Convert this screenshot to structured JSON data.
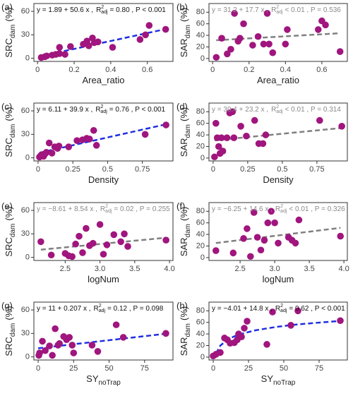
{
  "chart_data": [
    {
      "type": "scatter",
      "label": "(a)",
      "xlabel": [
        "Area_ratio"
      ],
      "ylabel": [
        "SRC",
        "dam",
        "(%)"
      ],
      "annotation": [
        "y = 1.89 + 50.6 x ,",
        "R",
        "2",
        "adj",
        "= 0.80 , P < 0.001"
      ],
      "annotation_color": "#111111",
      "x": [
        0.02,
        0.04,
        0.05,
        0.08,
        0.1,
        0.12,
        0.12,
        0.15,
        0.18,
        0.25,
        0.27,
        0.28,
        0.3,
        0.31,
        0.33,
        0.41,
        0.56,
        0.59,
        0.61,
        0.7
      ],
      "y": [
        1,
        2,
        3,
        4,
        5,
        6,
        14,
        5,
        15,
        18,
        22,
        16,
        26,
        20,
        21,
        14,
        24,
        30,
        42,
        37
      ],
      "color": "#a0157e",
      "fit": {
        "x": [
          0.02,
          0.7
        ],
        "y": [
          2.9,
          37.3
        ],
        "color": "#1f2fe0"
      },
      "xlim": [
        -0.02,
        0.74
      ],
      "ylim": [
        -4,
        70
      ],
      "xticks": [
        0,
        0.2,
        0.4,
        0.6
      ],
      "yticks": [
        0,
        30,
        60
      ]
    },
    {
      "type": "scatter",
      "label": "(b)",
      "xlabel": [
        "Area_ratio"
      ],
      "ylabel": [
        "SAR",
        "dam",
        "(%)"
      ],
      "annotation": [
        "y = 31.2 + 17.7 x ,",
        "R",
        "2",
        "adj",
        "< 0.01 , P = 0.536"
      ],
      "annotation_color": "#8a8a8a",
      "x": [
        0.02,
        0.05,
        0.08,
        0.1,
        0.12,
        0.14,
        0.15,
        0.17,
        0.22,
        0.25,
        0.28,
        0.3,
        0.31,
        0.33,
        0.4,
        0.41,
        0.58,
        0.6,
        0.62,
        0.7
      ],
      "y": [
        2,
        35,
        8,
        16,
        78,
        30,
        35,
        60,
        23,
        38,
        25,
        78,
        25,
        10,
        25,
        50,
        50,
        65,
        58,
        12
      ],
      "color": "#a0157e",
      "fit": {
        "x": [
          0.02,
          0.7
        ],
        "y": [
          31.6,
          43.6
        ],
        "color": "#808080"
      },
      "xlim": [
        -0.02,
        0.74
      ],
      "ylim": [
        -5,
        95
      ],
      "xticks": [
        0,
        0.2,
        0.4,
        0.6
      ],
      "yticks": [
        0,
        20,
        40,
        60,
        80
      ]
    },
    {
      "type": "scatter",
      "label": "(c)",
      "xlabel": [
        "Density"
      ],
      "ylabel": [
        "SRC",
        "dam",
        "(%)"
      ],
      "annotation": [
        "y = 6.11 + 39.9 x ,",
        "R",
        "2",
        "adj",
        "= 0.76 , P < 0.001"
      ],
      "annotation_color": "#111111",
      "x": [
        0.01,
        0.02,
        0.03,
        0.04,
        0.05,
        0.06,
        0.08,
        0.1,
        0.12,
        0.14,
        0.15,
        0.22,
        0.28,
        0.32,
        0.35,
        0.37,
        0.4,
        0.42,
        0.77,
        0.92
      ],
      "y": [
        1,
        3,
        4,
        2,
        5,
        7,
        19,
        6,
        14,
        12,
        15,
        14,
        22,
        23,
        25,
        24,
        35,
        16,
        30,
        42
      ],
      "color": "#a0157e",
      "fit": {
        "x": [
          0.01,
          0.92
        ],
        "y": [
          6.5,
          42.8
        ],
        "color": "#1f2fe0"
      },
      "xlim": [
        -0.03,
        0.97
      ],
      "ylim": [
        -4,
        70
      ],
      "xticks": [
        0,
        0.25,
        0.5,
        0.75
      ],
      "yticks": [
        0,
        30,
        60
      ]
    },
    {
      "type": "scatter",
      "label": "(d)",
      "xlabel": [
        "Density"
      ],
      "ylabel": [
        "SAR",
        "dam",
        "(%)"
      ],
      "annotation": [
        "y = 30.4 + 23.2 x ,",
        "R",
        "2",
        "adj",
        "< 0.01 , P = 0.314"
      ],
      "annotation_color": "#8a8a8a",
      "x": [
        0.01,
        0.02,
        0.03,
        0.04,
        0.05,
        0.06,
        0.07,
        0.1,
        0.12,
        0.14,
        0.15,
        0.2,
        0.24,
        0.3,
        0.33,
        0.36,
        0.38,
        0.77,
        0.93
      ],
      "y": [
        2,
        60,
        35,
        20,
        8,
        35,
        12,
        35,
        78,
        80,
        35,
        55,
        38,
        65,
        25,
        25,
        40,
        65,
        55
      ],
      "color": "#a0157e",
      "fit": {
        "x": [
          0.01,
          0.93
        ],
        "y": [
          30.6,
          52.0
        ],
        "color": "#808080"
      },
      "xlim": [
        -0.03,
        0.97
      ],
      "ylim": [
        -5,
        95
      ],
      "xticks": [
        0,
        0.25,
        0.5,
        0.75
      ],
      "yticks": [
        0,
        20,
        40,
        60,
        80
      ]
    },
    {
      "type": "scatter",
      "label": "(e)",
      "xlabel": [
        "logNum"
      ],
      "ylabel": [
        "SRC",
        "dam",
        "(%)"
      ],
      "annotation": [
        "y = −8.61 + 8.54 x ,",
        "R",
        "2",
        "adj",
        "= 0.02 , P = 0.255"
      ],
      "annotation_color": "#8a8a8a",
      "x": [
        2.15,
        2.3,
        2.5,
        2.55,
        2.6,
        2.65,
        2.7,
        2.75,
        2.8,
        2.85,
        2.9,
        3.0,
        3.05,
        3.1,
        3.2,
        3.3,
        3.35,
        3.4,
        3.95
      ],
      "y": [
        20,
        3,
        5,
        2,
        1,
        17,
        27,
        6,
        37,
        15,
        18,
        42,
        4,
        16,
        29,
        20,
        30,
        14,
        22
      ],
      "color": "#a0157e",
      "fit": {
        "x": [
          2.15,
          3.95
        ],
        "y": [
          9.8,
          25.1
        ],
        "color": "#808080"
      },
      "xlim": [
        2.05,
        4.05
      ],
      "ylim": [
        -4,
        70
      ],
      "xticks": [
        2.5,
        {
          "value": 3,
          "label": "3.0"
        },
        3.5,
        {
          "value": 4,
          "label": "4.0"
        }
      ],
      "yticks": [
        0,
        30,
        60
      ]
    },
    {
      "type": "scatter",
      "label": "(f)",
      "xlabel": [
        "logNum"
      ],
      "ylabel": [
        "SAR",
        "dam",
        "(%)"
      ],
      "annotation": [
        "y = −6.25 + 14.6 x ,",
        "R",
        "2",
        "adj",
        "< 0.01 , P = 0.326"
      ],
      "annotation_color": "#8a8a8a",
      "x": [
        2.15,
        2.4,
        2.55,
        2.6,
        2.65,
        2.7,
        2.75,
        2.8,
        2.85,
        2.9,
        2.95,
        3.0,
        3.05,
        3.2,
        3.25,
        3.3,
        3.35,
        3.95
      ],
      "y": [
        12,
        8,
        33,
        50,
        2,
        78,
        35,
        13,
        30,
        60,
        80,
        60,
        25,
        35,
        30,
        25,
        65,
        37
      ],
      "color": "#a0157e",
      "fit": {
        "x": [
          2.15,
          3.95
        ],
        "y": [
          25.1,
          51.4
        ],
        "color": "#808080"
      },
      "xlim": [
        2.05,
        4.05
      ],
      "ylim": [
        -5,
        95
      ],
      "xticks": [
        2.5,
        {
          "value": 3,
          "label": "3.0"
        },
        3.5,
        {
          "value": 4,
          "label": "4.0"
        }
      ],
      "yticks": [
        0,
        20,
        40,
        60,
        80
      ]
    },
    {
      "type": "scatter",
      "label": "(g)",
      "xlabel": [
        "SY",
        "noTrap"
      ],
      "ylabel": [
        "SRC",
        "dam",
        "(%)"
      ],
      "annotation": [
        "y = 11 + 0.207 x ,",
        "R",
        "2",
        "adj",
        "= 0.12 , P = 0.098"
      ],
      "annotation_color": "#111111",
      "x": [
        0.5,
        1,
        3,
        5,
        8,
        10,
        12,
        14,
        15,
        18,
        20,
        22,
        24,
        25,
        38,
        42,
        55,
        60,
        90
      ],
      "y": [
        2,
        5,
        20,
        8,
        14,
        2,
        36,
        15,
        17,
        26,
        22,
        25,
        15,
        5,
        15,
        7,
        41,
        25,
        30
      ],
      "color": "#a0157e",
      "fit": {
        "x": [
          0,
          90
        ],
        "y": [
          11,
          29.6
        ],
        "color": "#1f2fe0"
      },
      "xlim": [
        -3,
        95
      ],
      "ylim": [
        -4,
        70
      ],
      "xticks": [
        0,
        25,
        50,
        75
      ],
      "yticks": [
        0,
        30,
        60
      ]
    },
    {
      "type": "scatter",
      "label": "(h)",
      "xlabel": [
        "SY",
        "noTrap"
      ],
      "ylabel": [
        "SAR",
        "dam",
        "(%)"
      ],
      "annotation": [
        "y = −4.01 + 14.8 x ,",
        "R",
        "2",
        "adj",
        "= 0.62 , P < 0.001"
      ],
      "annotation_color": "#111111",
      "x": [
        0,
        2,
        5,
        8,
        10,
        12,
        15,
        17,
        18,
        20,
        22,
        24,
        38,
        42,
        55,
        60,
        90
      ],
      "y": [
        2,
        5,
        8,
        33,
        30,
        24,
        25,
        30,
        40,
        35,
        50,
        62,
        22,
        78,
        55,
        80,
        63
      ],
      "color": "#a0157e",
      "fit": {
        "x": [
          2,
          5,
          10,
          15,
          20,
          30,
          45,
          60,
          90
        ],
        "y": [
          6.2,
          19.8,
          30,
          36,
          40.3,
          46.3,
          52.3,
          56.6,
          62.6
        ],
        "color": "#1f2fe0"
      },
      "xlim": [
        -3,
        95
      ],
      "ylim": [
        -5,
        95
      ],
      "xticks": [
        0,
        25,
        50,
        75
      ],
      "yticks": [
        0,
        20,
        40,
        60,
        80
      ]
    }
  ]
}
